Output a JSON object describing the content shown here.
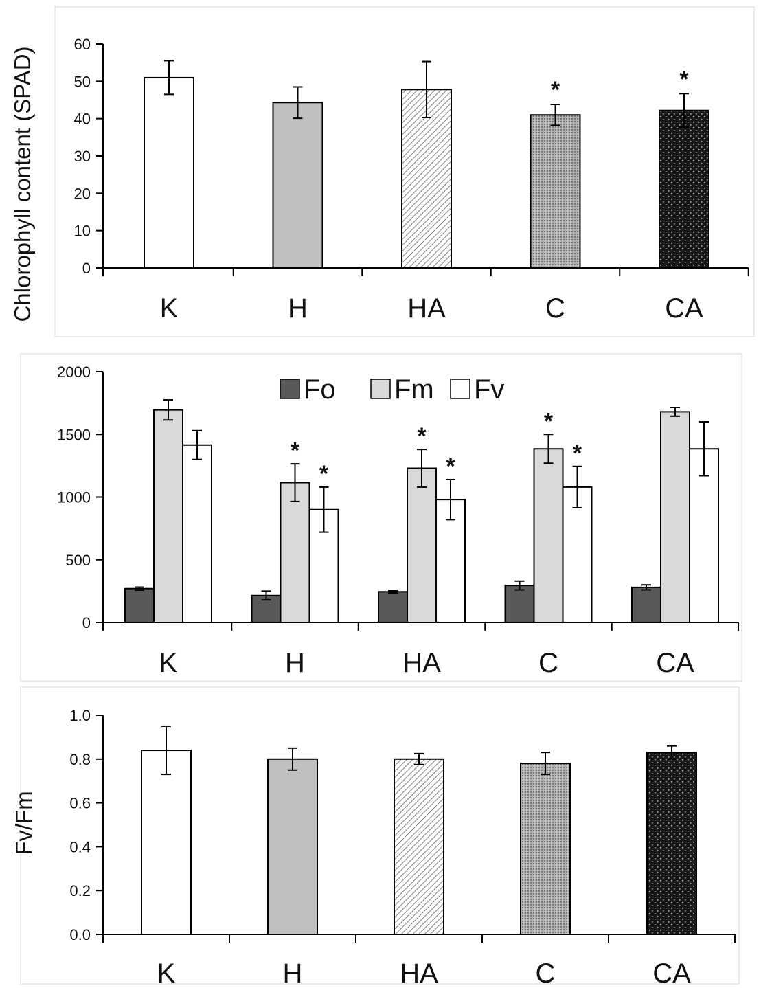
{
  "figure": {
    "description_title": ""
  },
  "colors": {
    "K": "#ffffff",
    "H": "#c0c0c0",
    "Fo": "#595959",
    "Fm": "#d9d9d9",
    "Fv": "#ffffff",
    "outline": "#000000"
  },
  "chart_data": [
    {
      "id": "chlorophyll",
      "type": "bar",
      "title": "",
      "xlabel": "",
      "ylabel": "Chlorophyll content (SPAD)",
      "categories": [
        "K",
        "H",
        "HA",
        "C",
        "CA"
      ],
      "yticks": [
        0,
        10,
        20,
        30,
        40,
        50,
        60
      ],
      "ylim": [
        0,
        60
      ],
      "patterns": [
        "solid-white",
        "solid-grey",
        "diagonal-hatch",
        "fine-dots-grey",
        "dots-on-black"
      ],
      "series": [
        {
          "name": "Chlorophyll",
          "values": [
            51,
            44.3,
            47.8,
            41,
            42.2
          ],
          "errors": [
            4.5,
            4.2,
            7.5,
            2.8,
            4.5
          ]
        }
      ],
      "significance": [
        "",
        "",
        "",
        "*",
        "*"
      ]
    },
    {
      "id": "fluorescence",
      "type": "bar",
      "title": "",
      "xlabel": "",
      "ylabel": "",
      "categories": [
        "K",
        "H",
        "HA",
        "C",
        "CA"
      ],
      "yticks": [
        0,
        500,
        1000,
        1500,
        2000
      ],
      "ylim": [
        0,
        2000
      ],
      "legend": [
        "Fo",
        "Fm",
        "Fv"
      ],
      "series": [
        {
          "name": "Fo",
          "values": [
            270,
            215,
            245,
            295,
            280
          ],
          "errors": [
            12,
            35,
            10,
            35,
            20
          ],
          "significance": [
            "",
            "",
            "",
            "",
            ""
          ]
        },
        {
          "name": "Fm",
          "values": [
            1695,
            1115,
            1230,
            1385,
            1680
          ],
          "errors": [
            80,
            150,
            150,
            115,
            35
          ],
          "significance": [
            "",
            "*",
            "*",
            "*",
            ""
          ]
        },
        {
          "name": "Fv",
          "values": [
            1415,
            900,
            980,
            1080,
            1385
          ],
          "errors": [
            115,
            180,
            160,
            165,
            215
          ],
          "significance": [
            "",
            "*",
            "*",
            "*",
            ""
          ]
        }
      ]
    },
    {
      "id": "fvfm",
      "type": "bar",
      "title": "",
      "xlabel": "",
      "ylabel": "Fv/Fm",
      "categories": [
        "K",
        "H",
        "HA",
        "C",
        "CA"
      ],
      "yticks": [
        "0.0",
        "0.2",
        "0.4",
        "0.6",
        "0.8",
        "1.0"
      ],
      "ylim": [
        0,
        1.0
      ],
      "patterns": [
        "solid-white",
        "solid-grey",
        "diagonal-hatch",
        "fine-dots-grey",
        "dots-on-black"
      ],
      "series": [
        {
          "name": "Fv/Fm",
          "values": [
            0.84,
            0.8,
            0.8,
            0.78,
            0.83
          ],
          "errors": [
            0.11,
            0.05,
            0.025,
            0.05,
            0.03
          ]
        }
      ],
      "significance": [
        "",
        "",
        "",
        "",
        ""
      ]
    }
  ]
}
